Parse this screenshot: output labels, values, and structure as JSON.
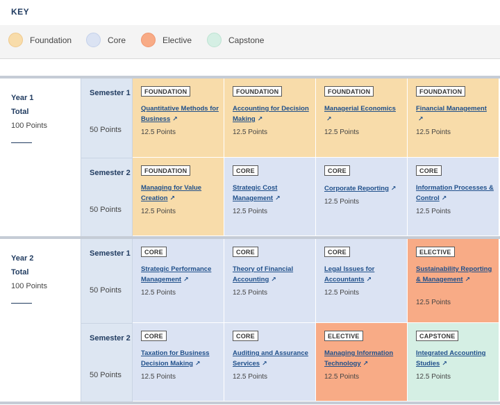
{
  "key": {
    "title": "KEY",
    "items": [
      {
        "label": "Foundation",
        "color": "#f8dcaa"
      },
      {
        "label": "Core",
        "color": "#dbe3f3"
      },
      {
        "label": "Elective",
        "color": "#f8ab86"
      },
      {
        "label": "Capstone",
        "color": "#d5efe4"
      }
    ]
  },
  "years": [
    {
      "label": "Year 1",
      "total": "Total",
      "points": "100 Points",
      "semesters": [
        {
          "label": "Semester 1",
          "points": "50 Points",
          "units": [
            {
              "type": "FOUNDATION",
              "title": "Quantitative Methods for Business",
              "points": "12.5 Points"
            },
            {
              "type": "FOUNDATION",
              "title": "Accounting for Decision Making",
              "points": "12.5 Points"
            },
            {
              "type": "FOUNDATION",
              "title": "Managerial Economics",
              "points": "12.5 Points"
            },
            {
              "type": "FOUNDATION",
              "title": "Financial Management",
              "points": "12.5 Points"
            }
          ]
        },
        {
          "label": "Semester 2",
          "points": "50 Points",
          "units": [
            {
              "type": "FOUNDATION",
              "title": "Managing for Value Creation",
              "points": "12.5 Points"
            },
            {
              "type": "CORE",
              "title": "Strategic Cost Management",
              "points": "12.5 Points"
            },
            {
              "type": "CORE",
              "title": "Corporate Reporting",
              "points": "12.5 Points"
            },
            {
              "type": "CORE",
              "title": "Information Processes & Control",
              "points": "12.5 Points"
            }
          ]
        }
      ]
    },
    {
      "label": "Year 2",
      "total": "Total",
      "points": "100 Points",
      "semesters": [
        {
          "label": "Semester 1",
          "points": "50 Points",
          "units": [
            {
              "type": "CORE",
              "title": "Strategic Performance Management",
              "points": "12.5 Points"
            },
            {
              "type": "CORE",
              "title": "Theory of Financial Accounting",
              "points": "12.5 Points"
            },
            {
              "type": "CORE",
              "title": "Legal Issues for Accountants",
              "points": "12.5 Points"
            },
            {
              "type": "ELECTIVE",
              "title": "Sustainability Reporting & Management",
              "points": "12.5 Points"
            }
          ]
        },
        {
          "label": "Semester 2",
          "points": "50 Points",
          "units": [
            {
              "type": "CORE",
              "title": "Taxation for Business Decision Making",
              "points": "12.5 Points"
            },
            {
              "type": "CORE",
              "title": "Auditing and Assurance Services",
              "points": "12.5 Points"
            },
            {
              "type": "ELECTIVE",
              "title": "Managing Information Technology",
              "points": "12.5 Points"
            },
            {
              "type": "CAPSTONE",
              "title": "Integrated Accounting Studies",
              "points": "12.5 Points"
            }
          ]
        }
      ]
    }
  ]
}
